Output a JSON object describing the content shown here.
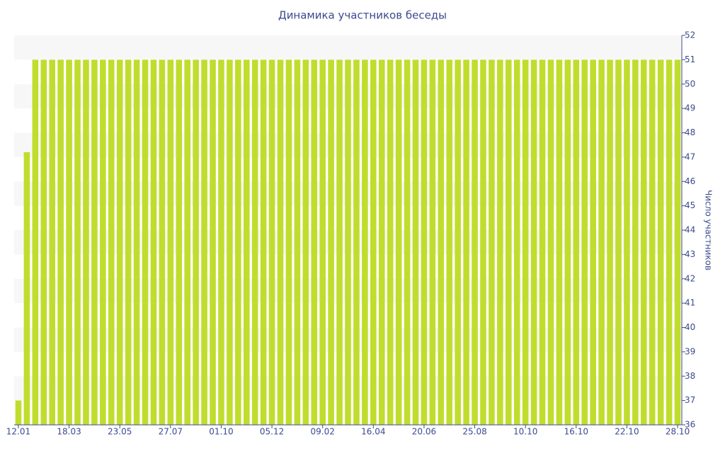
{
  "chart_data": {
    "type": "bar",
    "title": "Динамика участников беседы",
    "y_label": "Число участников",
    "categories": [
      "12.01",
      null,
      null,
      null,
      null,
      null,
      "18.03",
      null,
      null,
      null,
      null,
      null,
      "23.05",
      null,
      null,
      null,
      null,
      null,
      "27.07",
      null,
      null,
      null,
      null,
      null,
      "01.10",
      null,
      null,
      null,
      null,
      null,
      "05.12",
      null,
      null,
      null,
      null,
      null,
      "09.02",
      null,
      null,
      null,
      null,
      null,
      "16.04",
      null,
      null,
      null,
      null,
      null,
      "20.06",
      null,
      null,
      null,
      null,
      null,
      "25.08",
      null,
      null,
      null,
      null,
      null,
      "10.10",
      null,
      null,
      null,
      null,
      null,
      "16.10",
      null,
      null,
      null,
      null,
      null,
      "22.10",
      null,
      null,
      null,
      null,
      null,
      "28.10"
    ],
    "values": [
      37,
      47.2,
      51,
      51,
      51,
      51,
      51,
      51,
      51,
      51,
      51,
      51,
      51,
      51,
      51,
      51,
      51,
      51,
      51,
      51,
      51,
      51,
      51,
      51,
      51,
      51,
      51,
      51,
      51,
      51,
      51,
      51,
      51,
      51,
      51,
      51,
      51,
      51,
      51,
      51,
      51,
      51,
      51,
      51,
      51,
      51,
      51,
      51,
      51,
      51,
      51,
      51,
      51,
      51,
      51,
      51,
      51,
      51,
      51,
      51,
      51,
      51,
      51,
      51,
      51,
      51,
      51,
      51,
      51,
      51,
      51,
      51,
      51,
      51,
      51,
      51,
      51,
      51,
      51
    ],
    "color": "#c0dd2e",
    "ylim": [
      36,
      52
    ],
    "yticks": [
      36,
      37,
      38,
      39,
      40,
      41,
      42,
      43,
      44,
      45,
      46,
      47,
      48,
      49,
      50,
      51,
      52
    ],
    "y_axis_side": "right",
    "grid": true
  }
}
